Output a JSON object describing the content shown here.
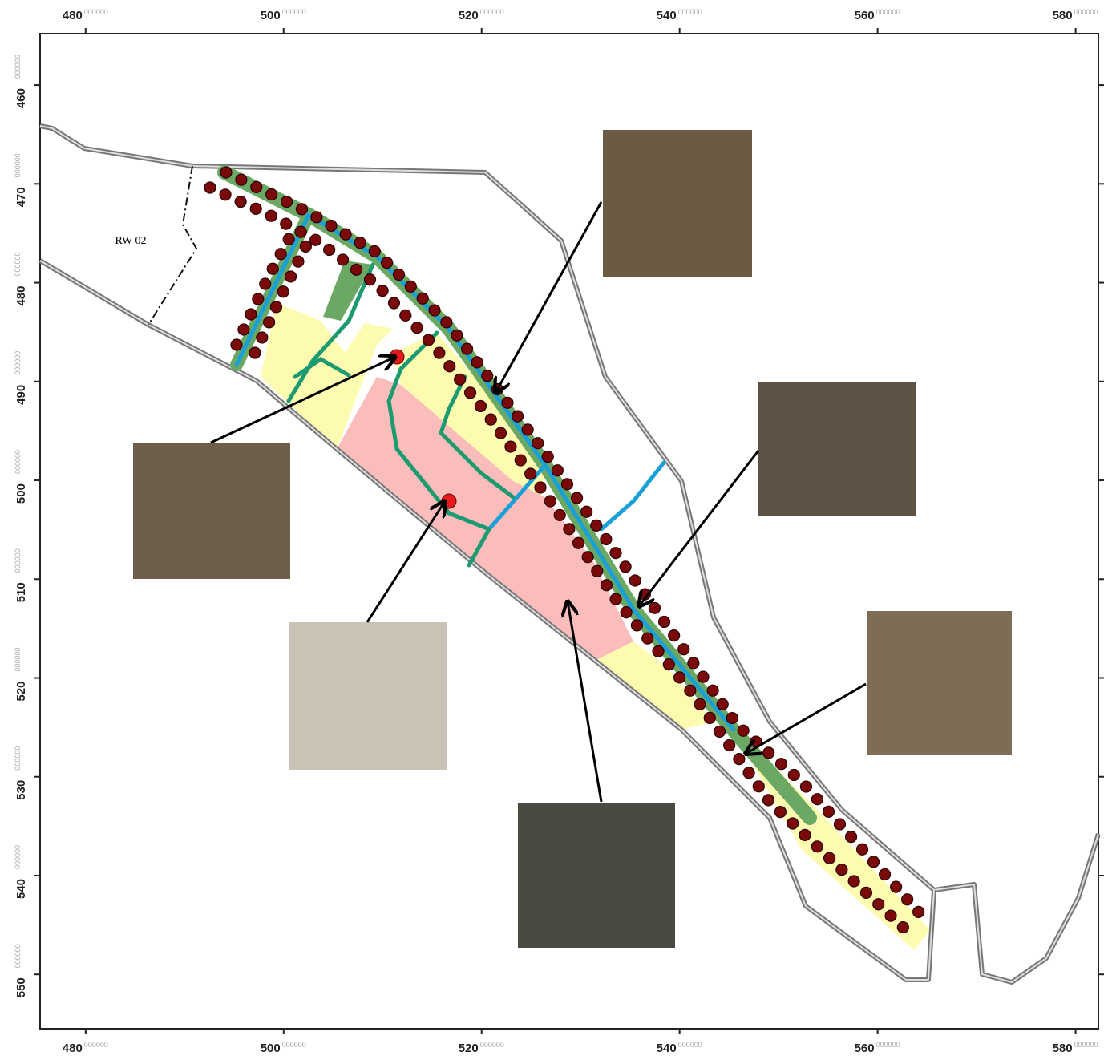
{
  "map": {
    "x_ticks": [
      480,
      500,
      520,
      540,
      560,
      580
    ],
    "y_ticks": [
      460,
      470,
      480,
      490,
      500,
      510,
      520,
      530,
      540,
      550
    ],
    "tick_suffix": "000000",
    "xlim": [
      475.4,
      582.3
    ],
    "ylim": [
      454.8,
      555.5
    ],
    "area_label": "RW 02"
  }
}
